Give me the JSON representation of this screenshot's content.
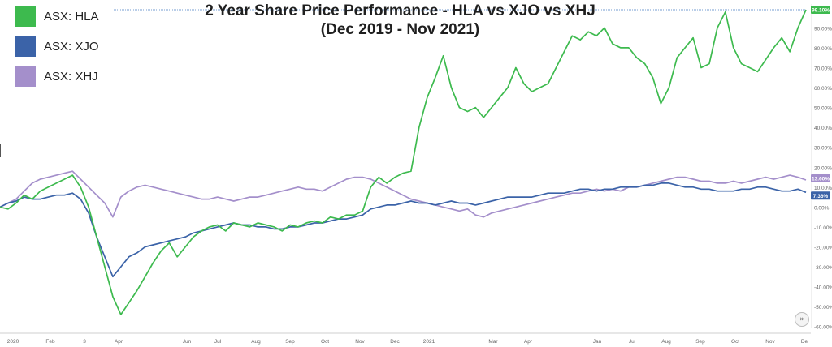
{
  "chart_data": {
    "type": "line",
    "title": "2 Year Share Price Performance - HLA vs XJO vs XHJ",
    "subtitle": "(Dec 2019 - Nov 2021)",
    "x_tick_labels": [
      "2020",
      "Feb",
      "3",
      "Apr",
      "Jun",
      "Jul",
      "Aug",
      "Sep",
      "Oct",
      "Nov",
      "Dec",
      "2021",
      "Mar",
      "Apr",
      "Jan",
      "Jul",
      "Aug",
      "Sep",
      "Oct",
      "Nov",
      "De"
    ],
    "x": [
      0,
      5,
      10,
      15,
      20,
      25,
      30,
      35,
      40,
      45,
      50,
      55,
      60,
      65,
      70,
      75,
      80,
      85,
      90,
      95,
      100,
      105,
      110,
      115,
      120,
      125,
      130,
      135,
      140,
      145,
      150,
      155,
      160,
      165,
      170,
      175,
      180,
      185,
      190,
      195,
      200,
      205,
      210,
      215,
      220,
      225,
      230,
      235,
      240,
      245,
      250,
      255,
      260,
      265,
      270,
      275,
      280,
      285,
      290,
      295,
      300,
      305,
      310,
      315,
      320,
      325,
      330,
      335,
      340,
      345,
      350,
      355,
      360,
      365,
      370,
      375,
      380,
      385,
      390,
      395,
      400,
      405,
      410,
      415,
      420,
      425,
      430,
      435,
      440,
      445,
      450,
      455,
      460,
      465,
      470,
      475,
      480,
      485,
      490,
      495,
      500
    ],
    "ylim": [
      -65,
      104
    ],
    "y_tick_values": [
      90,
      80,
      70,
      60,
      50,
      40,
      30,
      20,
      10,
      0,
      -10,
      -20,
      -30,
      -40,
      -50,
      -60
    ],
    "y_tick_labels": [
      "90.00%",
      "80.00%",
      "70.00%",
      "60.00%",
      "50.00%",
      "40.00%",
      "30.00%",
      "20.00%",
      "10.00%",
      "0.00%",
      "-10.00%",
      "-20.00%",
      "-30.00%",
      "-40.00%",
      "-50.00%",
      "-60.00%"
    ],
    "reference_line": 99.1,
    "grid": false,
    "legend_position": "top-left",
    "series": [
      {
        "name": "ASX: HLA",
        "color": "#3dba4e",
        "end_label": "99.10%",
        "values": [
          0,
          -1,
          2,
          6,
          4,
          8,
          10,
          12,
          14,
          16,
          10,
          0,
          -15,
          -30,
          -45,
          -54,
          -48,
          -42,
          -35,
          -28,
          -22,
          -18,
          -25,
          -20,
          -15,
          -12,
          -10,
          -9,
          -12,
          -8,
          -9,
          -10,
          -8,
          -9,
          -10,
          -12,
          -9,
          -10,
          -8,
          -7,
          -8,
          -5,
          -6,
          -4,
          -4,
          -2,
          10,
          15,
          12,
          15,
          17,
          18,
          40,
          55,
          65,
          76,
          60,
          50,
          48,
          50,
          45,
          50,
          55,
          60,
          70,
          62,
          58,
          60,
          62,
          70,
          78,
          86,
          84,
          88,
          86,
          90,
          82,
          80,
          80,
          75,
          72,
          65,
          52,
          60,
          75,
          80,
          85,
          70,
          72,
          90,
          98,
          80,
          72,
          70,
          68,
          74,
          80,
          85,
          78,
          90,
          99.1
        ]
      },
      {
        "name": "ASX: XJO",
        "color": "#3b63a8",
        "end_label": "7.36%",
        "values": [
          0,
          2,
          3,
          5,
          4,
          4,
          5,
          6,
          6,
          7,
          4,
          -3,
          -15,
          -25,
          -35,
          -30,
          -25,
          -23,
          -20,
          -19,
          -18,
          -17,
          -16,
          -15,
          -13,
          -12,
          -11,
          -10,
          -9,
          -8,
          -9,
          -9,
          -10,
          -10,
          -11,
          -11,
          -10,
          -10,
          -9,
          -8,
          -8,
          -7,
          -6,
          -6,
          -5,
          -4,
          -1,
          0,
          1,
          1,
          2,
          3,
          2,
          2,
          1,
          2,
          3,
          2,
          2,
          1,
          2,
          3,
          4,
          5,
          5,
          5,
          5,
          6,
          7,
          7,
          7,
          8,
          9,
          9,
          8,
          9,
          9,
          10,
          10,
          10,
          11,
          11,
          12,
          12,
          11,
          10,
          10,
          9,
          9,
          8,
          8,
          8,
          9,
          9,
          10,
          10,
          9,
          8,
          8,
          9,
          7.36
        ]
      },
      {
        "name": "ASX: XHJ",
        "color": "#a48fcb",
        "end_label": "13.60%",
        "values": [
          0,
          2,
          4,
          8,
          12,
          14,
          15,
          16,
          17,
          18,
          14,
          10,
          6,
          2,
          -5,
          5,
          8,
          10,
          11,
          10,
          9,
          8,
          7,
          6,
          5,
          4,
          4,
          5,
          4,
          3,
          4,
          5,
          5,
          6,
          7,
          8,
          9,
          10,
          9,
          9,
          8,
          10,
          12,
          14,
          15,
          15,
          14,
          12,
          10,
          8,
          6,
          4,
          3,
          2,
          1,
          0,
          -1,
          -2,
          -1,
          -4,
          -5,
          -3,
          -2,
          -1,
          0,
          1,
          2,
          3,
          4,
          5,
          6,
          7,
          7,
          8,
          9,
          8,
          9,
          8,
          10,
          10,
          11,
          12,
          13,
          14,
          15,
          15,
          14,
          13,
          13,
          12,
          12,
          13,
          12,
          13,
          14,
          15,
          14,
          15,
          16,
          15,
          13.6
        ]
      }
    ]
  }
}
